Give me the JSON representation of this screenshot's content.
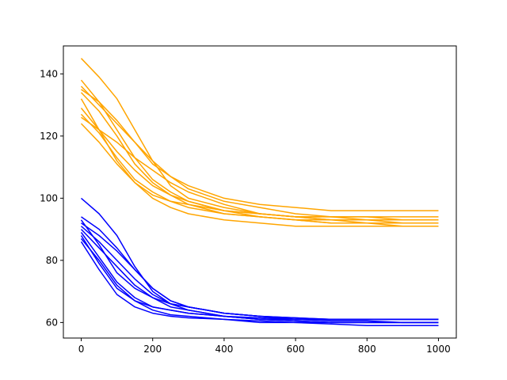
{
  "chart_data": {
    "type": "line",
    "title": "",
    "xlabel": "",
    "ylabel": "",
    "xlim": [
      -50,
      1050
    ],
    "ylim": [
      55,
      149
    ],
    "xticks": [
      0,
      200,
      400,
      600,
      800,
      1000
    ],
    "yticks": [
      60,
      80,
      100,
      120,
      140
    ],
    "grid": false,
    "legend": "none",
    "x": [
      0,
      50,
      100,
      150,
      200,
      250,
      300,
      400,
      500,
      600,
      700,
      800,
      900,
      1000
    ],
    "series": [
      {
        "color": "#ffa500",
        "values": [
          145,
          139,
          132,
          122,
          112,
          104,
          100,
          97,
          95,
          94,
          94,
          93,
          93,
          93
        ]
      },
      {
        "color": "#ffa500",
        "values": [
          138,
          131,
          122,
          113,
          106,
          102,
          99,
          96,
          95,
          94,
          93,
          93,
          92,
          92
        ]
      },
      {
        "color": "#ffa500",
        "values": [
          136,
          130,
          124,
          118,
          112,
          107,
          103,
          99,
          97,
          95,
          94,
          94,
          93,
          93
        ]
      },
      {
        "color": "#ffa500",
        "values": [
          134,
          128,
          120,
          111,
          105,
          101,
          99,
          96,
          94,
          93,
          93,
          92,
          92,
          92
        ]
      },
      {
        "color": "#ffa500",
        "values": [
          132,
          122,
          112,
          105,
          101,
          99,
          98,
          96,
          95,
          94,
          94,
          94,
          94,
          94
        ]
      },
      {
        "color": "#ffa500",
        "values": [
          129,
          122,
          115,
          109,
          104,
          101,
          98,
          95,
          94,
          93,
          92,
          92,
          92,
          92
        ]
      },
      {
        "color": "#ffa500",
        "values": [
          127,
          121,
          113,
          106,
          102,
          99,
          97,
          95,
          94,
          93,
          92,
          92,
          91,
          91
        ]
      },
      {
        "color": "#ffa500",
        "values": [
          126,
          122,
          118,
          113,
          109,
          105,
          102,
          98,
          95,
          94,
          93,
          93,
          93,
          93
        ]
      },
      {
        "color": "#ffa500",
        "values": [
          124,
          118,
          111,
          105,
          100,
          97,
          95,
          93,
          92,
          91,
          91,
          91,
          91,
          91
        ]
      },
      {
        "color": "#ffa500",
        "values": [
          135,
          131,
          125,
          118,
          111,
          107,
          104,
          100,
          98,
          97,
          96,
          96,
          96,
          96
        ]
      },
      {
        "color": "#0000ff",
        "values": [
          100,
          95,
          88,
          78,
          70,
          66,
          65,
          63,
          62,
          61.5,
          61,
          61,
          61,
          61
        ]
      },
      {
        "color": "#0000ff",
        "values": [
          93,
          85,
          76,
          71,
          68,
          66,
          64,
          62,
          61,
          60.5,
          60,
          60,
          60,
          60
        ]
      },
      {
        "color": "#0000ff",
        "values": [
          92,
          88,
          83,
          77,
          71,
          67,
          65,
          63,
          62,
          61,
          61,
          61,
          61,
          61
        ]
      },
      {
        "color": "#0000ff",
        "values": [
          91,
          86,
          80,
          74,
          69,
          66,
          65,
          63,
          62,
          61,
          61,
          61,
          61,
          61
        ]
      },
      {
        "color": "#0000ff",
        "values": [
          90,
          84,
          78,
          72,
          68,
          65,
          64,
          62,
          61.5,
          61,
          60.5,
          60.5,
          60,
          60
        ]
      },
      {
        "color": "#0000ff",
        "values": [
          89,
          81,
          73,
          68,
          65,
          64,
          63,
          62,
          61,
          61,
          61,
          61,
          61,
          61
        ]
      },
      {
        "color": "#0000ff",
        "values": [
          88,
          79,
          71,
          67,
          65,
          64,
          63,
          62,
          61,
          60.5,
          60,
          60,
          60,
          60
        ]
      },
      {
        "color": "#0000ff",
        "values": [
          87,
          80,
          72,
          67,
          64,
          62.5,
          62,
          61,
          60,
          60,
          59.5,
          59,
          59,
          59
        ]
      },
      {
        "color": "#0000ff",
        "values": [
          86,
          77,
          69,
          65,
          63,
          62,
          61.5,
          61,
          60.5,
          60,
          60,
          60,
          60,
          60
        ]
      },
      {
        "color": "#0000ff",
        "values": [
          94,
          90,
          84,
          77,
          71,
          67,
          65,
          63,
          62,
          61.5,
          61,
          61,
          61,
          61
        ]
      }
    ]
  }
}
